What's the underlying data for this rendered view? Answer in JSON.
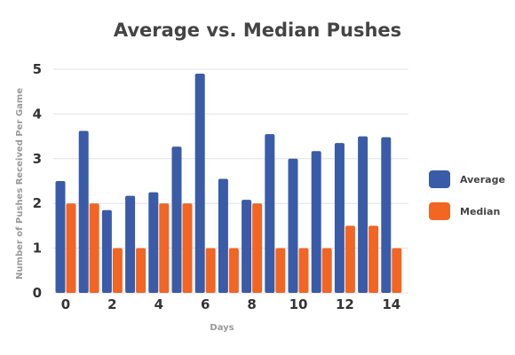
{
  "colors": {
    "average": "#3a5ba8",
    "median": "#f26522",
    "grid": "#e2e2e2",
    "text": "#444444"
  },
  "chart_data": {
    "type": "bar",
    "title": "Average vs. Median Pushes",
    "xlabel": "Days",
    "ylabel": "Number of Pushes Received Per Game",
    "categories": [
      0,
      1,
      2,
      3,
      4,
      5,
      6,
      7,
      8,
      9,
      10,
      11,
      12,
      13,
      14
    ],
    "x_tick_labels": [
      "0",
      "2",
      "4",
      "6",
      "8",
      "10",
      "12",
      "14"
    ],
    "y_tick_labels": [
      "0",
      "1",
      "2",
      "3",
      "4",
      "5"
    ],
    "ylim": [
      0,
      5
    ],
    "grid": true,
    "legend_position": "right",
    "series": [
      {
        "name": "Average",
        "color": "#3a5ba8",
        "values": [
          2.5,
          3.62,
          1.85,
          2.17,
          2.25,
          3.27,
          4.9,
          2.55,
          2.08,
          3.55,
          3.0,
          3.17,
          3.35,
          3.5,
          3.48
        ]
      },
      {
        "name": "Median",
        "color": "#f26522",
        "values": [
          2,
          2,
          1,
          1,
          2,
          2,
          1,
          1,
          2,
          1,
          1,
          1,
          1.5,
          1.5,
          1
        ]
      }
    ]
  }
}
